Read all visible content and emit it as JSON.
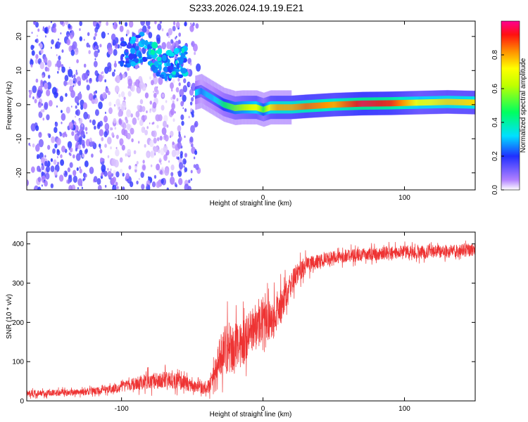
{
  "figure": {
    "title": "S233.2026.024.19.19.E21"
  },
  "chart_data": [
    {
      "type": "heatmap",
      "title": "S233.2026.024.19.19.E21",
      "xlabel": "Height of straight line (km)",
      "ylabel": "Frequency (Hz)",
      "xlim": [
        -167,
        150
      ],
      "ylim": [
        -25,
        24.5
      ],
      "xticks": [
        -100,
        0,
        100
      ],
      "yticks": [
        -20,
        -10,
        0,
        10,
        20
      ],
      "xtick_labels": [
        "-100",
        "0",
        "100"
      ],
      "ytick_labels": [
        "-20",
        "-10",
        "0",
        "10",
        "20"
      ],
      "ridge": {
        "x": [
          -48,
          -44,
          -40,
          -36,
          -32,
          -28,
          -24,
          -20,
          -15,
          -10,
          -5,
          0,
          5,
          10,
          20,
          30,
          50,
          70,
          90,
          110,
          130,
          150
        ],
        "freq": [
          3.5,
          4,
          3,
          2,
          1,
          0,
          -0.5,
          -1,
          -0.8,
          -0.8,
          -0.8,
          -1.5,
          -0.8,
          -0.8,
          -0.8,
          -0.5,
          0,
          0.3,
          0.4,
          0.6,
          0.8,
          0.6
        ],
        "amplitude": [
          0.35,
          0.25,
          0.3,
          0.3,
          0.35,
          0.45,
          0.5,
          0.55,
          0.6,
          0.65,
          0.7,
          0.5,
          0.75,
          0.8,
          0.8,
          0.85,
          0.8,
          0.95,
          0.9,
          0.7,
          0.75,
          0.75
        ]
      },
      "high_band": {
        "x": [
          -100,
          -95,
          -90,
          -85,
          -80,
          -75,
          -70,
          -65,
          -60,
          -55
        ],
        "freq": [
          14,
          15,
          16,
          17,
          16,
          13,
          12,
          11,
          12,
          13
        ],
        "amplitude": [
          0.2,
          0.25,
          0.3,
          0.3,
          0.35,
          0.35,
          0.3,
          0.3,
          0.35,
          0.3
        ]
      },
      "noise_region": {
        "x_range": [
          -167,
          -50
        ],
        "freq_range": [
          -25,
          24.5
        ],
        "amplitude": 0.15
      },
      "colorbar": {
        "label": "Normalized spectral amplitude",
        "range": [
          0,
          1
        ],
        "ticks": [
          0,
          0.2,
          0.4,
          0.6,
          0.8
        ],
        "tick_labels": [
          "0.0",
          "0.2",
          "0.4",
          "0.6",
          "0.8"
        ]
      }
    },
    {
      "type": "line",
      "xlabel": "Height of straight line (km)",
      "ylabel": "SNR (10 * v/v)",
      "xlim": [
        -167,
        150
      ],
      "ylim": [
        0,
        430
      ],
      "xticks": [
        -100,
        0,
        100
      ],
      "yticks": [
        0,
        100,
        200,
        300,
        400
      ],
      "xtick_labels": [
        "-100",
        "0",
        "100"
      ],
      "ytick_labels": [
        "0",
        "100",
        "200",
        "300",
        "400"
      ],
      "color": "#ee3333",
      "series": [
        {
          "name": "SNR",
          "x": [
            -167,
            -150,
            -130,
            -110,
            -100,
            -90,
            -80,
            -70,
            -60,
            -50,
            -40,
            -35,
            -30,
            -25,
            -20,
            -15,
            -10,
            -5,
            0,
            5,
            10,
            15,
            20,
            25,
            30,
            40,
            50,
            60,
            70,
            80,
            90,
            100,
            110,
            120,
            130,
            140,
            150
          ],
          "y": [
            20,
            20,
            22,
            28,
            35,
            45,
            50,
            55,
            50,
            40,
            30,
            60,
            120,
            140,
            130,
            150,
            170,
            190,
            210,
            200,
            220,
            260,
            300,
            330,
            345,
            355,
            365,
            370,
            372,
            375,
            378,
            380,
            378,
            382,
            380,
            383,
            385
          ],
          "noise_amplitude": [
            14,
            14,
            15,
            18,
            22,
            30,
            38,
            40,
            38,
            30,
            25,
            55,
            100,
            120,
            110,
            110,
            100,
            100,
            100,
            95,
            90,
            80,
            60,
            50,
            40,
            32,
            30,
            30,
            30,
            30,
            30,
            30,
            30,
            30,
            30,
            30,
            30
          ]
        }
      ]
    }
  ]
}
